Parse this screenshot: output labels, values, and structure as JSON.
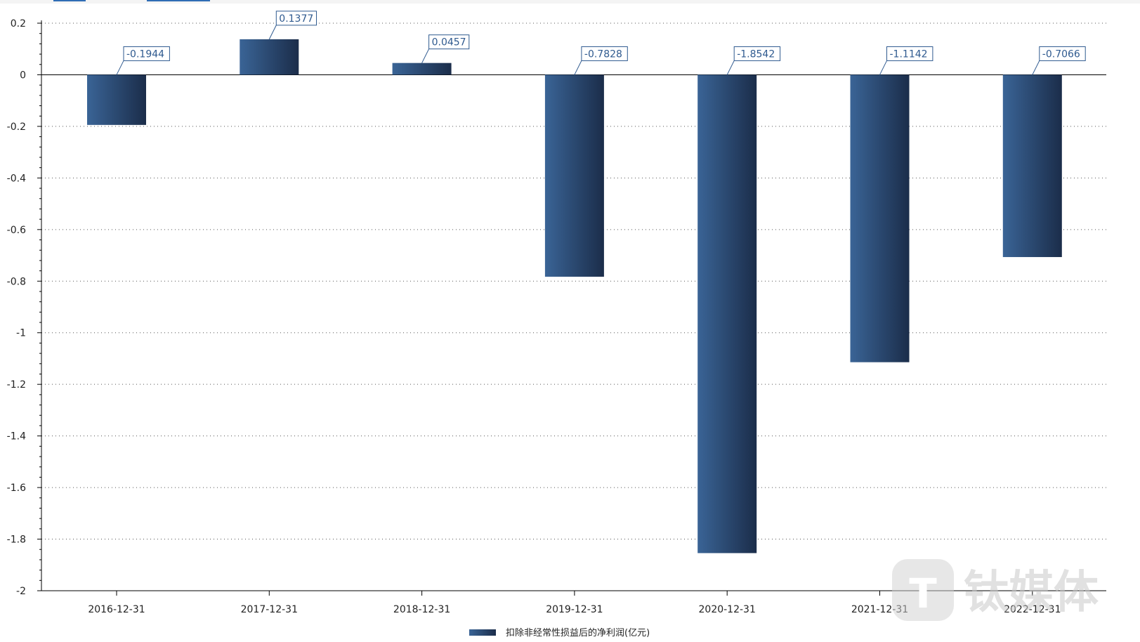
{
  "top_tabs": [
    "",
    ""
  ],
  "chart_data": {
    "type": "bar",
    "title": "",
    "xlabel": "",
    "ylabel": "",
    "categories": [
      "2016-12-31",
      "2017-12-31",
      "2018-12-31",
      "2019-12-31",
      "2020-12-31",
      "2021-12-31",
      "2022-12-31"
    ],
    "series": [
      {
        "name": "扣除非经常性损益后的净利润(亿元)",
        "values": [
          -0.1944,
          0.1377,
          0.0457,
          -0.7828,
          -1.8542,
          -1.1142,
          -0.7066
        ],
        "labels": [
          "-0.1944",
          "0.1377",
          "0.0457",
          "-0.7828",
          "-1.8542",
          "-1.1142",
          "-0.7066"
        ]
      }
    ],
    "ylim": [
      -2,
      0.2
    ],
    "yticks": [
      0.2,
      0,
      -0.2,
      -0.4,
      -0.6,
      -0.8,
      -1,
      -1.2,
      -1.4,
      -1.6,
      -1.8,
      -2
    ],
    "ytick_labels": [
      "0.2",
      "0",
      "-0.2",
      "-0.4",
      "-0.6",
      "-0.8",
      "-1",
      "-1.2",
      "-1.4",
      "-1.6",
      "-1.8",
      "-2"
    ],
    "grid": true,
    "legend_position": "bottom-center",
    "colors": {
      "bar_light": "#3a6496",
      "bar_dark": "#1b2d4a",
      "label_border": "#2f5a8f",
      "axis": "#000000",
      "grid": "#555555"
    }
  },
  "watermark": {
    "text": "钛媒体",
    "logo_letter": "T"
  }
}
